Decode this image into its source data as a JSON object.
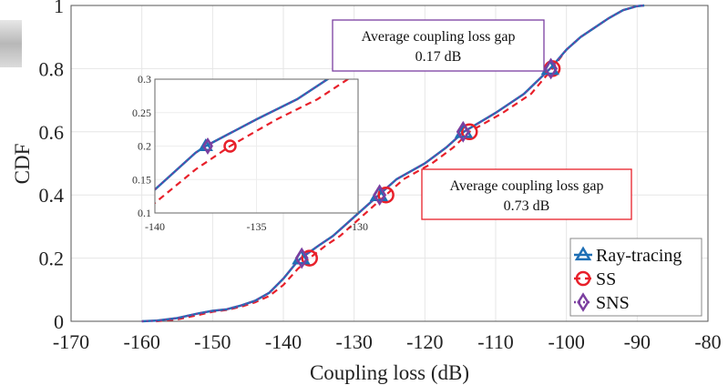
{
  "chart_data": {
    "type": "line",
    "title": "",
    "xlabel": "Coupling loss (dB)",
    "ylabel": "CDF",
    "xlim": [
      -170,
      -80
    ],
    "ylim": [
      0,
      1
    ],
    "xticks": [
      "-170",
      "-160",
      "-150",
      "-140",
      "-130",
      "-120",
      "-110",
      "-100",
      "-90",
      "-80"
    ],
    "yticks": [
      "0",
      "0.2",
      "0.4",
      "0.6",
      "0.8",
      "1"
    ],
    "grid": true,
    "legend_position": "bottom-right",
    "series": [
      {
        "name": "Ray-tracing",
        "color": "#1f6fb5",
        "style": "solid",
        "marker": "triangle",
        "x": [
          -160,
          -158,
          -155,
          -152,
          -150,
          -148,
          -146,
          -144,
          -142,
          -140,
          -138,
          -137.5,
          -135,
          -133,
          -130,
          -128,
          -126.5,
          -124,
          -120,
          -117,
          -114.5,
          -110,
          -106,
          -102.3,
          -100,
          -98,
          -96,
          -94,
          -92,
          -90,
          -89
        ],
        "y": [
          0,
          0.002,
          0.01,
          0.025,
          0.033,
          0.038,
          0.05,
          0.065,
          0.09,
          0.135,
          0.19,
          0.2,
          0.24,
          0.27,
          0.33,
          0.37,
          0.4,
          0.45,
          0.5,
          0.55,
          0.6,
          0.66,
          0.72,
          0.8,
          0.86,
          0.9,
          0.93,
          0.96,
          0.985,
          0.998,
          1
        ],
        "markers_x": [
          -137.5,
          -126.5,
          -114.5,
          -102.3
        ],
        "markers_y": [
          0.2,
          0.4,
          0.6,
          0.8
        ]
      },
      {
        "name": "SS",
        "color": "#e8202a",
        "style": "dashed",
        "marker": "circle",
        "x": [
          -158,
          -155,
          -152,
          -150,
          -148,
          -146,
          -144,
          -142,
          -140,
          -138,
          -136.3,
          -134,
          -132,
          -129,
          -127,
          -125.5,
          -123,
          -119,
          -116,
          -113.7,
          -109,
          -105,
          -102,
          -100,
          -98,
          -96,
          -94,
          -92,
          -90,
          -89
        ],
        "y": [
          0,
          0.006,
          0.02,
          0.03,
          0.036,
          0.046,
          0.06,
          0.08,
          0.115,
          0.165,
          0.2,
          0.24,
          0.27,
          0.33,
          0.37,
          0.4,
          0.45,
          0.5,
          0.55,
          0.6,
          0.66,
          0.72,
          0.8,
          0.86,
          0.9,
          0.93,
          0.96,
          0.985,
          0.998,
          1
        ],
        "markers_x": [
          -136.3,
          -125.5,
          -113.7,
          -102
        ],
        "markers_y": [
          0.2,
          0.4,
          0.6,
          0.8
        ]
      },
      {
        "name": "SNS",
        "color": "#7b3fa0",
        "style": "dotted",
        "marker": "diamond",
        "x": [
          -160,
          -158,
          -155,
          -152,
          -150,
          -148,
          -146,
          -144,
          -142,
          -140,
          -138,
          -137.5,
          -135,
          -133,
          -130,
          -128,
          -126.5,
          -124,
          -120,
          -117,
          -114.5,
          -110,
          -106,
          -102.3,
          -100,
          -98,
          -96,
          -94,
          -92,
          -90,
          -89
        ],
        "y": [
          0,
          0.002,
          0.01,
          0.025,
          0.033,
          0.038,
          0.05,
          0.065,
          0.09,
          0.135,
          0.19,
          0.2,
          0.24,
          0.27,
          0.33,
          0.37,
          0.4,
          0.45,
          0.5,
          0.55,
          0.6,
          0.66,
          0.72,
          0.8,
          0.86,
          0.9,
          0.93,
          0.96,
          0.985,
          0.998,
          1
        ],
        "markers_x": [
          -137.4,
          -126.4,
          -114.6,
          -102.2
        ],
        "markers_y": [
          0.2,
          0.4,
          0.6,
          0.8
        ]
      }
    ],
    "inset": {
      "xlim": [
        -140,
        -130
      ],
      "ylim": [
        0.1,
        0.3
      ],
      "xticks": [
        "-140",
        "-135",
        "-130"
      ],
      "yticks": [
        "0.1",
        "0.15",
        "0.2",
        "0.25",
        "0.3"
      ]
    },
    "annotations": [
      {
        "line1": "Average coupling loss gap",
        "line2": "0.17 dB",
        "color": "#7b3fa0"
      },
      {
        "line1": "Average coupling loss gap",
        "line2": "0.73 dB",
        "color": "#e8202a"
      }
    ]
  }
}
